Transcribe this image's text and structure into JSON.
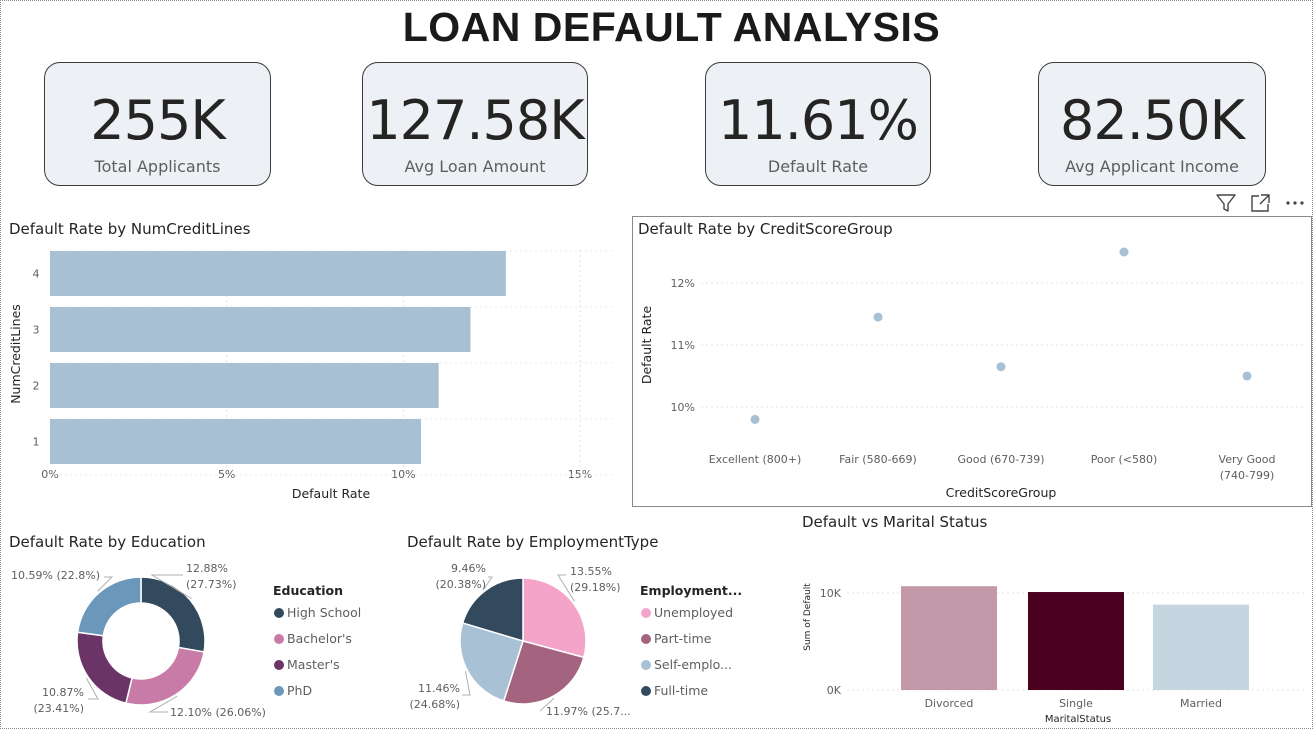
{
  "title": "LOAN DEFAULT ANALYSIS",
  "kpis": [
    {
      "value": "255K",
      "label": "Total Applicants"
    },
    {
      "value": "127.58K",
      "label": "Avg Loan Amount"
    },
    {
      "value": "11.61%",
      "label": "Default Rate"
    },
    {
      "value": "82.50K",
      "label": "Avg Applicant Income"
    }
  ],
  "header_icons": [
    "filter-icon",
    "focus-mode-icon",
    "more-options-icon"
  ],
  "charts": {
    "numcreditlines": {
      "title": "Default Rate by NumCreditLines"
    },
    "creditscore": {
      "title": "Default Rate by CreditScoreGroup"
    },
    "education": {
      "title": "Default Rate by Education",
      "legend_title": "Education"
    },
    "employment": {
      "title": "Default Rate by EmploymentType",
      "legend_title": "Employment..."
    },
    "marital": {
      "title": "Default vs Marital Status"
    }
  },
  "chart_data": [
    {
      "type": "bar",
      "orientation": "horizontal",
      "title": "Default Rate by NumCreditLines",
      "categories": [
        "4",
        "3",
        "2",
        "1"
      ],
      "values": [
        12.9,
        11.9,
        11.0,
        10.5
      ],
      "xlabel": "Default Rate",
      "ylabel": "NumCreditLines",
      "xticks": [
        "0%",
        "5%",
        "10%",
        "15%"
      ],
      "xlim": [
        0,
        15
      ],
      "grid": true,
      "color": "#a8c0d3"
    },
    {
      "type": "scatter",
      "title": "Default Rate by CreditScoreGroup",
      "categories": [
        "Excellent (800+)",
        "Fair (580-669)",
        "Good (670-739)",
        "Poor (<580)",
        "Very Good (740-799)"
      ],
      "values": [
        9.8,
        11.45,
        10.65,
        12.5,
        10.5
      ],
      "xlabel": "CreditScoreGroup",
      "ylabel": "Default Rate",
      "yticks": [
        "10%",
        "11%",
        "12%"
      ],
      "ylim": [
        9.6,
        12.5
      ],
      "grid": true,
      "color": "#a8c0d3"
    },
    {
      "type": "pie",
      "donut": true,
      "title": "Default Rate by Education",
      "legend_title": "Education",
      "legend_position": "right",
      "slices": [
        {
          "label": "High School",
          "value": 12.88,
          "text1": "12.88%",
          "text2": "(27.73%)",
          "color": "#334a5e"
        },
        {
          "label": "Bachelor's",
          "value": 12.1,
          "text1": "12.10% (26.06%)",
          "text2": "",
          "color": "#c97ba8"
        },
        {
          "label": "Master's",
          "value": 10.87,
          "text1": "10.87%",
          "text2": "(23.41%)",
          "color": "#6a3466"
        },
        {
          "label": "PhD",
          "value": 10.59,
          "text1": "10.59% (22.8%)",
          "text2": "",
          "color": "#6b97ba"
        }
      ]
    },
    {
      "type": "pie",
      "donut": false,
      "title": "Default Rate by EmploymentType",
      "legend_title": "Employment...",
      "legend_position": "right",
      "slices": [
        {
          "label": "Unemployed",
          "value": 13.55,
          "text1": "13.55%",
          "text2": "(29.18%)",
          "color": "#f4a3c9"
        },
        {
          "label": "Part-time",
          "value": 11.97,
          "text1": "11.97% (25.7...",
          "text2": "",
          "color": "#a4637f"
        },
        {
          "label": "Self-emplo...",
          "value": 11.46,
          "text1": "11.46%",
          "text2": "(24.68%)",
          "color": "#a9c1d5"
        },
        {
          "label": "Full-time",
          "value": 9.46,
          "text1": "9.46%",
          "text2": "(20.38%)",
          "color": "#334a5e"
        }
      ]
    },
    {
      "type": "bar",
      "title": "Default vs Marital Status",
      "categories": [
        "Divorced",
        "Single",
        "Married"
      ],
      "values": [
        10700,
        10100,
        8800
      ],
      "colors": [
        "#c399a9",
        "#4b0020",
        "#c6d6e1"
      ],
      "xlabel": "MaritalStatus",
      "ylabel": "Sum of Default",
      "yticks": [
        "0K",
        "10K"
      ],
      "ylim": [
        0,
        12000
      ],
      "grid": true
    }
  ]
}
